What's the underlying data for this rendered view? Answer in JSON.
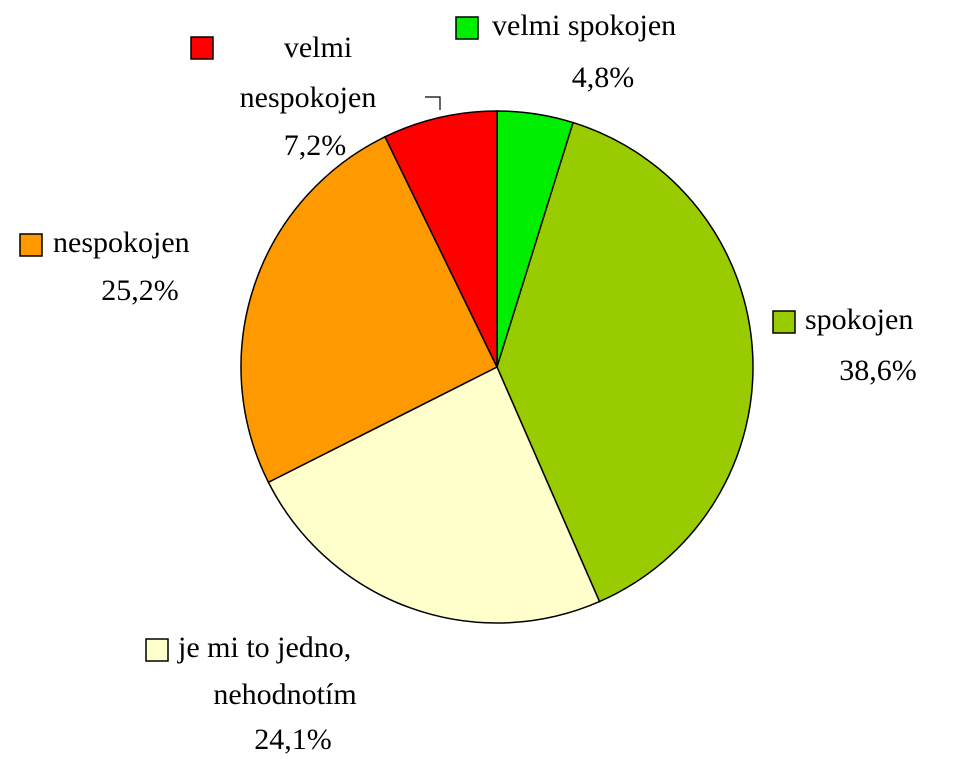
{
  "chart_data": {
    "type": "pie",
    "categories": [
      "velmi spokojen",
      "spokojen",
      "je mi to jedno, nehodnotím",
      "nespokojen",
      "velmi nespokojen"
    ],
    "values": [
      4.8,
      38.6,
      24.1,
      25.2,
      7.2
    ],
    "value_labels": [
      "4,8%",
      "38,6%",
      "24,1%",
      "25,2%",
      "7,2%"
    ],
    "colors": [
      "#00ee00",
      "#99cc00",
      "#ffffcc",
      "#ff9900",
      "#ff0000"
    ]
  }
}
